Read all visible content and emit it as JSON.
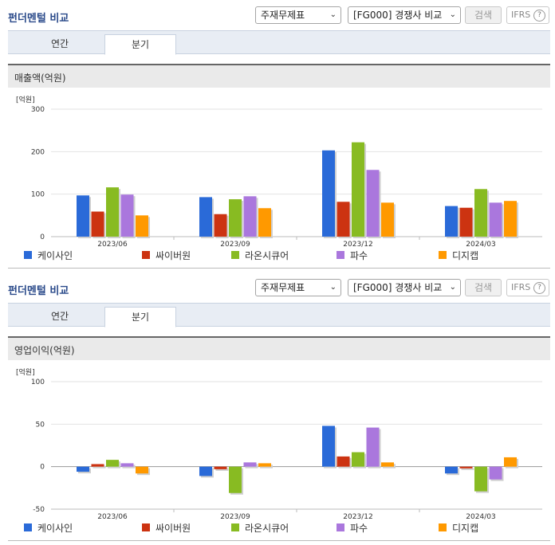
{
  "series_colors": [
    "#2a6ad8",
    "#cc3311",
    "#88bb22",
    "#aa77dd",
    "#ff9900"
  ],
  "panels": [
    {
      "title": "펀더멘털 비교",
      "select1": "주재무제표",
      "select2": "[FG000] 경쟁사 비교",
      "search_label": "검색",
      "ifrs_label": "IFRS",
      "help_label": "?",
      "tabs": [
        {
          "label": "연간",
          "active": false
        },
        {
          "label": "분기",
          "active": true
        }
      ],
      "chart_title": "매출액(억원)",
      "unit_label": "[억원]"
    },
    {
      "title": "펀더멘털 비교",
      "select1": "주재무제표",
      "select2": "[FG000] 경쟁사 비교",
      "search_label": "검색",
      "ifrs_label": "IFRS",
      "help_label": "?",
      "tabs": [
        {
          "label": "연간",
          "active": false
        },
        {
          "label": "분기",
          "active": true
        }
      ],
      "chart_title": "영업이익(억원)",
      "unit_label": "[억원]"
    }
  ],
  "chart_data": [
    {
      "type": "bar",
      "title": "매출액(억원)",
      "ylabel": "[억원]",
      "categories": [
        "2023/06",
        "2023/09",
        "2023/12",
        "2024/03"
      ],
      "ylim": [
        0,
        300
      ],
      "yticks": [
        0,
        100,
        200,
        300
      ],
      "legend_position": "bottom",
      "series": [
        {
          "name": "케이사인",
          "values": [
            97,
            93,
            203,
            72
          ]
        },
        {
          "name": "싸이버원",
          "values": [
            59,
            53,
            82,
            68
          ]
        },
        {
          "name": "라온시큐어",
          "values": [
            116,
            88,
            222,
            112
          ]
        },
        {
          "name": "파수",
          "values": [
            99,
            95,
            157,
            80
          ]
        },
        {
          "name": "디지캡",
          "values": [
            50,
            67,
            80,
            84
          ]
        }
      ]
    },
    {
      "type": "bar",
      "title": "영업이익(억원)",
      "ylabel": "[억원]",
      "categories": [
        "2023/06",
        "2023/09",
        "2023/12",
        "2024/03"
      ],
      "ylim": [
        -50,
        100
      ],
      "yticks": [
        -50,
        0,
        50,
        100
      ],
      "legend_position": "bottom",
      "series": [
        {
          "name": "케이사인",
          "values": [
            -6,
            -11,
            48,
            -8
          ]
        },
        {
          "name": "싸이버원",
          "values": [
            3,
            -3,
            12,
            -2
          ]
        },
        {
          "name": "라온시큐어",
          "values": [
            8,
            -31,
            17,
            -29
          ]
        },
        {
          "name": "파수",
          "values": [
            4,
            5,
            46,
            -15
          ]
        },
        {
          "name": "디지캡",
          "values": [
            -8,
            4,
            5,
            11
          ]
        }
      ]
    }
  ]
}
